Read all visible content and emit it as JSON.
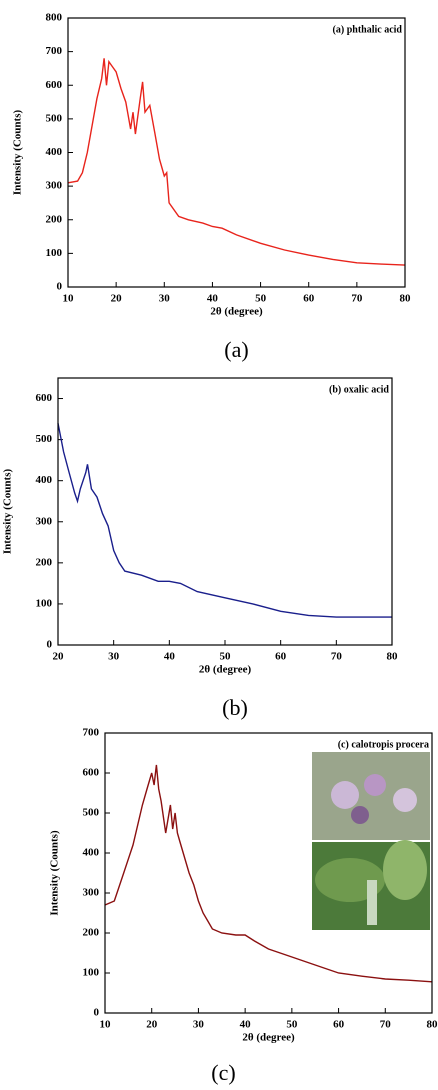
{
  "chart_data": [
    {
      "type": "line",
      "annotation": "(a) phthalic acid",
      "caption": "(a)",
      "x_label": "2θ (degree)",
      "y_label": "Intensity (Counts)",
      "color": "#e8241c",
      "xlim": [
        10,
        80
      ],
      "xticks": [
        10,
        20,
        30,
        40,
        50,
        60,
        70,
        80
      ],
      "ylim": [
        0,
        800
      ],
      "yticks": [
        0,
        100,
        200,
        300,
        400,
        500,
        600,
        700,
        800
      ],
      "x": [
        10,
        12,
        13,
        14,
        15,
        16,
        17,
        17.5,
        18,
        18.5,
        19,
        20,
        21,
        22,
        23,
        23.5,
        24,
        25,
        25.5,
        26,
        27,
        28,
        29,
        30,
        30.5,
        31,
        33,
        35,
        38,
        40,
        42,
        45,
        50,
        55,
        60,
        65,
        70,
        75,
        80
      ],
      "values": [
        310,
        315,
        340,
        400,
        480,
        560,
        620,
        680,
        600,
        670,
        660,
        640,
        590,
        550,
        470,
        520,
        455,
        560,
        610,
        520,
        540,
        460,
        380,
        330,
        340,
        250,
        210,
        200,
        190,
        180,
        175,
        155,
        130,
        110,
        95,
        82,
        72,
        68,
        65
      ]
    },
    {
      "type": "line",
      "annotation": "(b) oxalic acid",
      "caption": "(b)",
      "x_label": "2θ (degree)",
      "y_label": "Intensity (Counts)",
      "color": "#1a1f8c",
      "xlim": [
        20,
        80
      ],
      "xticks": [
        20,
        30,
        40,
        50,
        60,
        70,
        80
      ],
      "ylim": [
        0,
        650
      ],
      "yticks": [
        0,
        100,
        200,
        300,
        400,
        500,
        600
      ],
      "x": [
        20,
        21,
        22,
        23,
        23.5,
        24,
        25,
        25.3,
        26,
        27,
        28,
        29,
        30,
        31,
        32,
        35,
        38,
        40,
        42,
        45,
        50,
        55,
        60,
        65,
        70,
        75,
        80
      ],
      "values": [
        540,
        470,
        420,
        370,
        350,
        380,
        420,
        440,
        380,
        360,
        320,
        290,
        230,
        200,
        180,
        170,
        155,
        155,
        150,
        130,
        115,
        100,
        82,
        72,
        68,
        68,
        68
      ]
    },
    {
      "type": "line",
      "annotation": "(c) calotropis procera",
      "caption": "(c)",
      "x_label": "2θ (degree)",
      "y_label": "Intensity (Counts)",
      "color": "#8b1010",
      "xlim": [
        10,
        80
      ],
      "xticks": [
        10,
        20,
        30,
        40,
        50,
        60,
        70,
        80
      ],
      "ylim": [
        0,
        700
      ],
      "yticks": [
        0,
        100,
        200,
        300,
        400,
        500,
        600,
        700
      ],
      "x": [
        10,
        12,
        14,
        16,
        18,
        19,
        20,
        20.5,
        21,
        21.5,
        22,
        23,
        24,
        24.5,
        25,
        25.5,
        26,
        28,
        29,
        30,
        31,
        32,
        33,
        35,
        38,
        40,
        42,
        45,
        50,
        55,
        60,
        65,
        70,
        75,
        80
      ],
      "values": [
        270,
        280,
        350,
        420,
        520,
        560,
        600,
        570,
        620,
        560,
        530,
        450,
        520,
        460,
        500,
        450,
        430,
        350,
        320,
        280,
        250,
        230,
        210,
        200,
        195,
        195,
        180,
        160,
        140,
        120,
        100,
        92,
        85,
        82,
        78
      ]
    }
  ]
}
